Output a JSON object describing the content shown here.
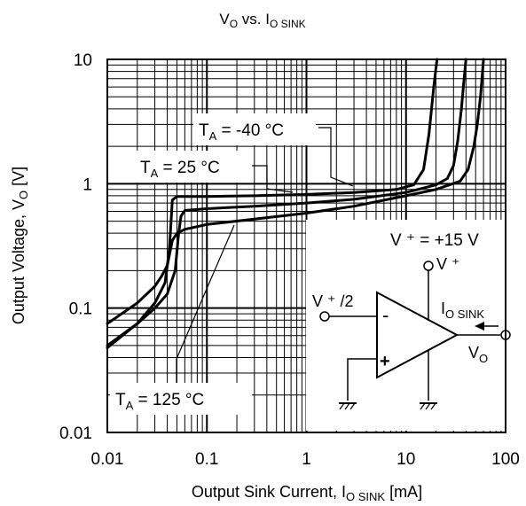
{
  "chart_data": {
    "type": "line",
    "title": {
      "main": "V",
      "sub1": "O",
      "mid": " vs. I",
      "sub2": "O SINK"
    },
    "xlabel": {
      "main": "Output Sink Current, I",
      "sub": "O SINK",
      "tail": " [mA]"
    },
    "ylabel": {
      "main": "Output Voltage, V",
      "sub": "O",
      "tail": " [V]"
    },
    "x_scale": "log",
    "y_scale": "log",
    "xlim": [
      0.01,
      100
    ],
    "ylim": [
      0.01,
      10
    ],
    "x_ticks": [
      {
        "value": 0.01,
        "label": "0.01"
      },
      {
        "value": 0.1,
        "label": "0.1"
      },
      {
        "value": 1,
        "label": "1"
      },
      {
        "value": 10,
        "label": "10"
      },
      {
        "value": 100,
        "label": "100"
      }
    ],
    "y_ticks": [
      {
        "value": 0.01,
        "label": "0.01"
      },
      {
        "value": 0.1,
        "label": "0.1"
      },
      {
        "value": 1,
        "label": "1"
      },
      {
        "value": 10,
        "label": "10"
      }
    ],
    "grid": true,
    "series": [
      {
        "name": "T_A = -40 °C",
        "x": [
          0.01,
          0.02,
          0.03,
          0.038,
          0.042,
          0.045,
          0.05,
          0.1,
          0.3,
          1,
          3,
          8,
          12,
          15,
          17,
          19,
          20.5
        ],
        "y": [
          0.048,
          0.075,
          0.11,
          0.16,
          0.3,
          0.74,
          0.79,
          0.79,
          0.8,
          0.82,
          0.85,
          0.9,
          0.98,
          1.3,
          2.5,
          6.0,
          10
        ]
      },
      {
        "name": "T_A = 25 °C",
        "x": [
          0.01,
          0.02,
          0.03,
          0.04,
          0.048,
          0.052,
          0.055,
          0.06,
          0.1,
          0.3,
          1,
          3,
          10,
          20,
          26,
          30,
          33,
          36,
          38,
          40
        ],
        "y": [
          0.05,
          0.075,
          0.1,
          0.13,
          0.2,
          0.4,
          0.55,
          0.61,
          0.63,
          0.66,
          0.7,
          0.75,
          0.85,
          0.98,
          1.1,
          1.4,
          2.2,
          4.0,
          6.5,
          10
        ]
      },
      {
        "name": "T_A = 125 °C",
        "x": [
          0.01,
          0.02,
          0.03,
          0.035,
          0.04,
          0.045,
          0.05,
          0.06,
          0.1,
          0.3,
          1,
          3,
          10,
          20,
          35,
          42,
          48,
          52,
          56,
          60
        ],
        "y": [
          0.075,
          0.11,
          0.15,
          0.18,
          0.22,
          0.35,
          0.4,
          0.43,
          0.47,
          0.52,
          0.58,
          0.66,
          0.8,
          0.9,
          1.05,
          1.3,
          2.0,
          3.0,
          5.0,
          10
        ]
      }
    ],
    "annotations": [
      {
        "prefix": "T",
        "sub": "A",
        "text": " = -40 °C",
        "target_x": 1.7,
        "target_y": 0.83,
        "pos": "upper-center"
      },
      {
        "prefix": "T",
        "sub": "A",
        "text": " = 25 °C",
        "target_x": 0.75,
        "target_y": 0.69,
        "pos": "upper-left"
      },
      {
        "prefix": "T",
        "sub": "A",
        "text": " = 125 °C",
        "target_x": 0.19,
        "target_y": 0.49,
        "pos": "lower-left"
      }
    ],
    "condition": {
      "text": "V ⁺ = +15 V"
    },
    "inset_schematic": {
      "vplus_label": "V ⁺",
      "input_label": "V ⁺ /2",
      "minus": "-",
      "plus": "+",
      "sink_label": {
        "main": "I",
        "sub": "O SINK"
      },
      "out_label": {
        "main": "V",
        "sub": "O"
      }
    }
  }
}
